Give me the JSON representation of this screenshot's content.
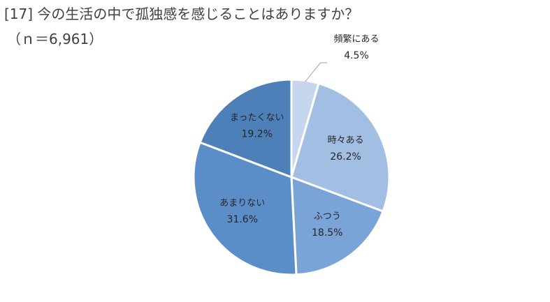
{
  "chart_data": {
    "type": "pie",
    "title": "[17] 今の生活の中で孤独感を感じることはありますか？",
    "subtitle": "（ｎ＝6,961）",
    "slices": [
      {
        "label": "頻繁にある",
        "value": 4.5,
        "value_label": "4.5%",
        "color": "#c6d6ed"
      },
      {
        "label": "時々ある",
        "value": 26.2,
        "value_label": "26.2%",
        "color": "#a2bee3"
      },
      {
        "label": "ふつう",
        "value": 18.5,
        "value_label": "18.5%",
        "color": "#7aa3d8"
      },
      {
        "label": "あまりない",
        "value": 31.6,
        "value_label": "31.6%",
        "color": "#5b8ec9"
      },
      {
        "label": "まったくない",
        "value": 19.2,
        "value_label": "19.2%",
        "color": "#4d7fb8"
      }
    ],
    "start": "12 o'clock",
    "direction": "clockwise"
  }
}
